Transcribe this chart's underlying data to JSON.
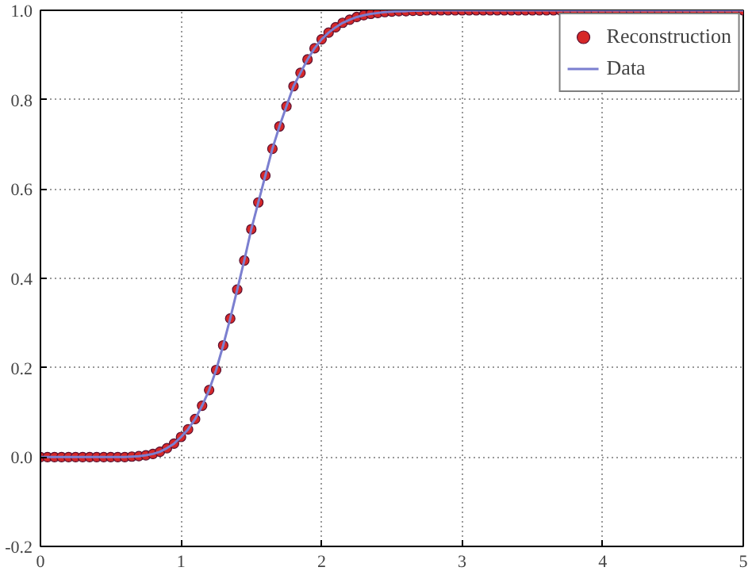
{
  "chart_data": {
    "type": "scatter",
    "x": [
      0,
      0.05,
      0.1,
      0.15,
      0.2,
      0.25,
      0.3,
      0.35,
      0.4,
      0.45,
      0.5,
      0.55,
      0.6,
      0.65,
      0.7,
      0.75,
      0.8,
      0.85,
      0.9,
      0.95,
      1.0,
      1.05,
      1.1,
      1.15,
      1.2,
      1.25,
      1.3,
      1.35,
      1.4,
      1.45,
      1.5,
      1.55,
      1.6,
      1.65,
      1.7,
      1.75,
      1.8,
      1.85,
      1.9,
      1.95,
      2.0,
      2.05,
      2.1,
      2.15,
      2.2,
      2.25,
      2.3,
      2.35,
      2.4,
      2.45,
      2.5,
      2.55,
      2.6,
      2.65,
      2.7,
      2.75,
      2.8,
      2.85,
      2.9,
      2.95,
      3.0,
      3.05,
      3.1,
      3.15,
      3.2,
      3.25,
      3.3,
      3.35,
      3.4,
      3.45,
      3.5,
      3.55,
      3.6,
      3.65,
      3.7,
      3.75,
      3.8,
      3.85,
      3.9,
      3.95,
      4.0,
      4.05,
      4.1,
      4.15,
      4.2,
      4.25,
      4.3,
      4.35,
      4.4,
      4.45,
      4.5,
      4.55,
      4.6,
      4.65,
      4.7,
      4.75,
      4.8,
      4.85,
      4.9,
      4.95,
      5.0
    ],
    "series": [
      {
        "name": "Reconstruction",
        "marker": "circle",
        "color": "#d62728",
        "values": [
          0,
          0,
          0,
          0,
          0,
          0,
          0,
          0,
          0,
          0,
          0,
          0,
          0,
          0.001,
          0.002,
          0.004,
          0.007,
          0.012,
          0.02,
          0.03,
          0.045,
          0.062,
          0.085,
          0.115,
          0.15,
          0.195,
          0.25,
          0.31,
          0.375,
          0.44,
          0.51,
          0.57,
          0.63,
          0.69,
          0.74,
          0.785,
          0.83,
          0.86,
          0.89,
          0.915,
          0.935,
          0.95,
          0.962,
          0.972,
          0.979,
          0.985,
          0.989,
          0.992,
          0.994,
          0.996,
          0.997,
          0.998,
          0.998,
          0.999,
          0.999,
          1,
          1,
          1,
          1,
          1,
          1,
          1,
          1,
          1,
          1,
          1,
          1,
          1,
          1,
          1,
          1,
          1,
          1,
          1,
          1,
          1,
          1,
          1,
          1,
          1,
          1,
          1,
          1,
          1,
          1,
          1,
          1,
          1,
          1,
          1,
          1,
          1,
          1,
          1,
          1,
          1,
          1,
          1,
          1,
          1,
          1
        ]
      },
      {
        "name": "Data",
        "type": "line",
        "color": "#7b7fd0",
        "values": [
          0,
          0,
          0,
          0,
          0,
          0,
          0,
          0,
          0,
          0,
          0,
          0,
          0,
          0.001,
          0.002,
          0.004,
          0.007,
          0.012,
          0.02,
          0.03,
          0.045,
          0.062,
          0.085,
          0.115,
          0.15,
          0.195,
          0.25,
          0.31,
          0.375,
          0.44,
          0.51,
          0.57,
          0.63,
          0.69,
          0.74,
          0.785,
          0.83,
          0.86,
          0.89,
          0.915,
          0.935,
          0.95,
          0.962,
          0.972,
          0.979,
          0.985,
          0.989,
          0.992,
          0.994,
          0.996,
          0.997,
          0.998,
          0.998,
          0.999,
          0.999,
          1,
          1,
          1,
          1,
          1,
          1,
          1,
          1,
          1,
          1,
          1,
          1,
          1,
          1,
          1,
          1,
          1,
          1,
          1,
          1,
          1,
          1,
          1,
          1,
          1,
          1,
          1,
          1,
          1,
          1,
          1,
          1,
          1,
          1,
          1,
          1,
          1,
          1,
          1,
          1,
          1,
          1,
          1,
          1,
          1,
          1
        ]
      }
    ],
    "xlim": [
      0,
      5
    ],
    "ylim": [
      -0.2,
      1.0
    ],
    "xticks": [
      0,
      1,
      2,
      3,
      4,
      5
    ],
    "yticks": [
      -0.2,
      {
        "value": 0,
        "label": "0.0"
      },
      0.2,
      0.4,
      0.6,
      0.8,
      {
        "value": 1,
        "label": "1.0"
      }
    ],
    "grid": true,
    "legend": "top right"
  }
}
